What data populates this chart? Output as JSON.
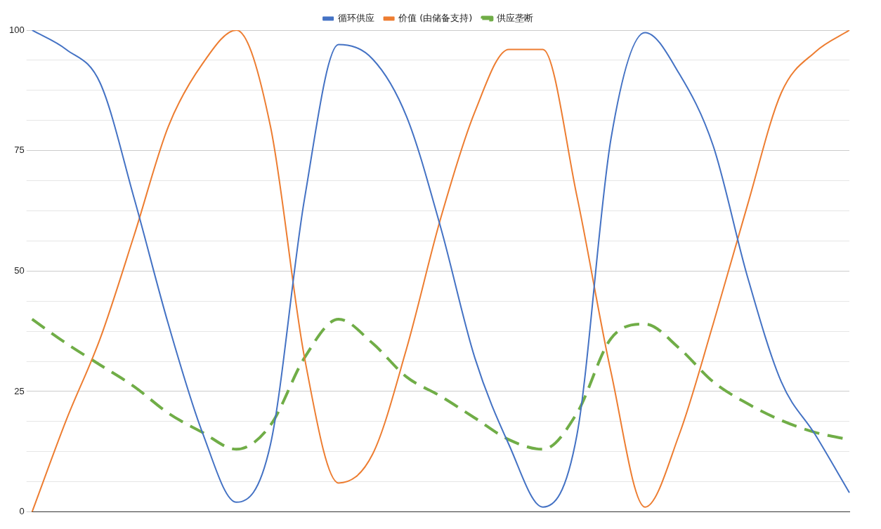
{
  "chart_data": {
    "type": "line",
    "categories": [
      null,
      null,
      null,
      null,
      null,
      null,
      null,
      null,
      null,
      null,
      null,
      null,
      null,
      null,
      null,
      null,
      null,
      null,
      null,
      null,
      null,
      null,
      null,
      null,
      null
    ],
    "series": [
      {
        "name": "循环供应",
        "color": "#4472c4",
        "line_style": "solid",
        "values": [
          100,
          96,
          89,
          65,
          39,
          16.5,
          2,
          14,
          65,
          97,
          94,
          82,
          59,
          32,
          14,
          1,
          16,
          77.5,
          99.5,
          91,
          76,
          49,
          27,
          16,
          4
        ]
      },
      {
        "name": "价值 (由储备支持)",
        "color": "#ed7d31",
        "line_style": "solid",
        "values": [
          0,
          19,
          36,
          57.5,
          80,
          93,
          100,
          80,
          32,
          6,
          12,
          34,
          61,
          83,
          96,
          96,
          65.5,
          29,
          1,
          16,
          39,
          63.5,
          87,
          95.5,
          100
        ]
      },
      {
        "name": "供应垄断",
        "color": "#70ad47",
        "line_style": "dashed",
        "values": [
          40,
          35,
          30.5,
          26,
          20.5,
          16.5,
          13,
          18,
          32,
          40,
          35,
          28,
          24,
          19.5,
          15,
          13,
          20.5,
          36,
          39,
          34,
          27,
          22.5,
          19,
          16.5,
          15
        ]
      }
    ],
    "ylim": [
      0,
      100
    ],
    "yticks": [
      0,
      {
        "value": 6.25,
        "label": null
      },
      {
        "value": 12.5,
        "label": null
      },
      {
        "value": 18.75,
        "label": null
      },
      25,
      {
        "value": 31.25,
        "label": null
      },
      {
        "value": 37.5,
        "label": null
      },
      {
        "value": 43.75,
        "label": null
      },
      50,
      {
        "value": 56.25,
        "label": null
      },
      {
        "value": 62.5,
        "label": null
      },
      {
        "value": 68.75,
        "label": null
      },
      75,
      {
        "value": 81.25,
        "label": null
      },
      {
        "value": 87.5,
        "label": null
      },
      {
        "value": 93.75,
        "label": null
      },
      100
    ],
    "grid": "y",
    "legend": "top",
    "marker": "none"
  }
}
